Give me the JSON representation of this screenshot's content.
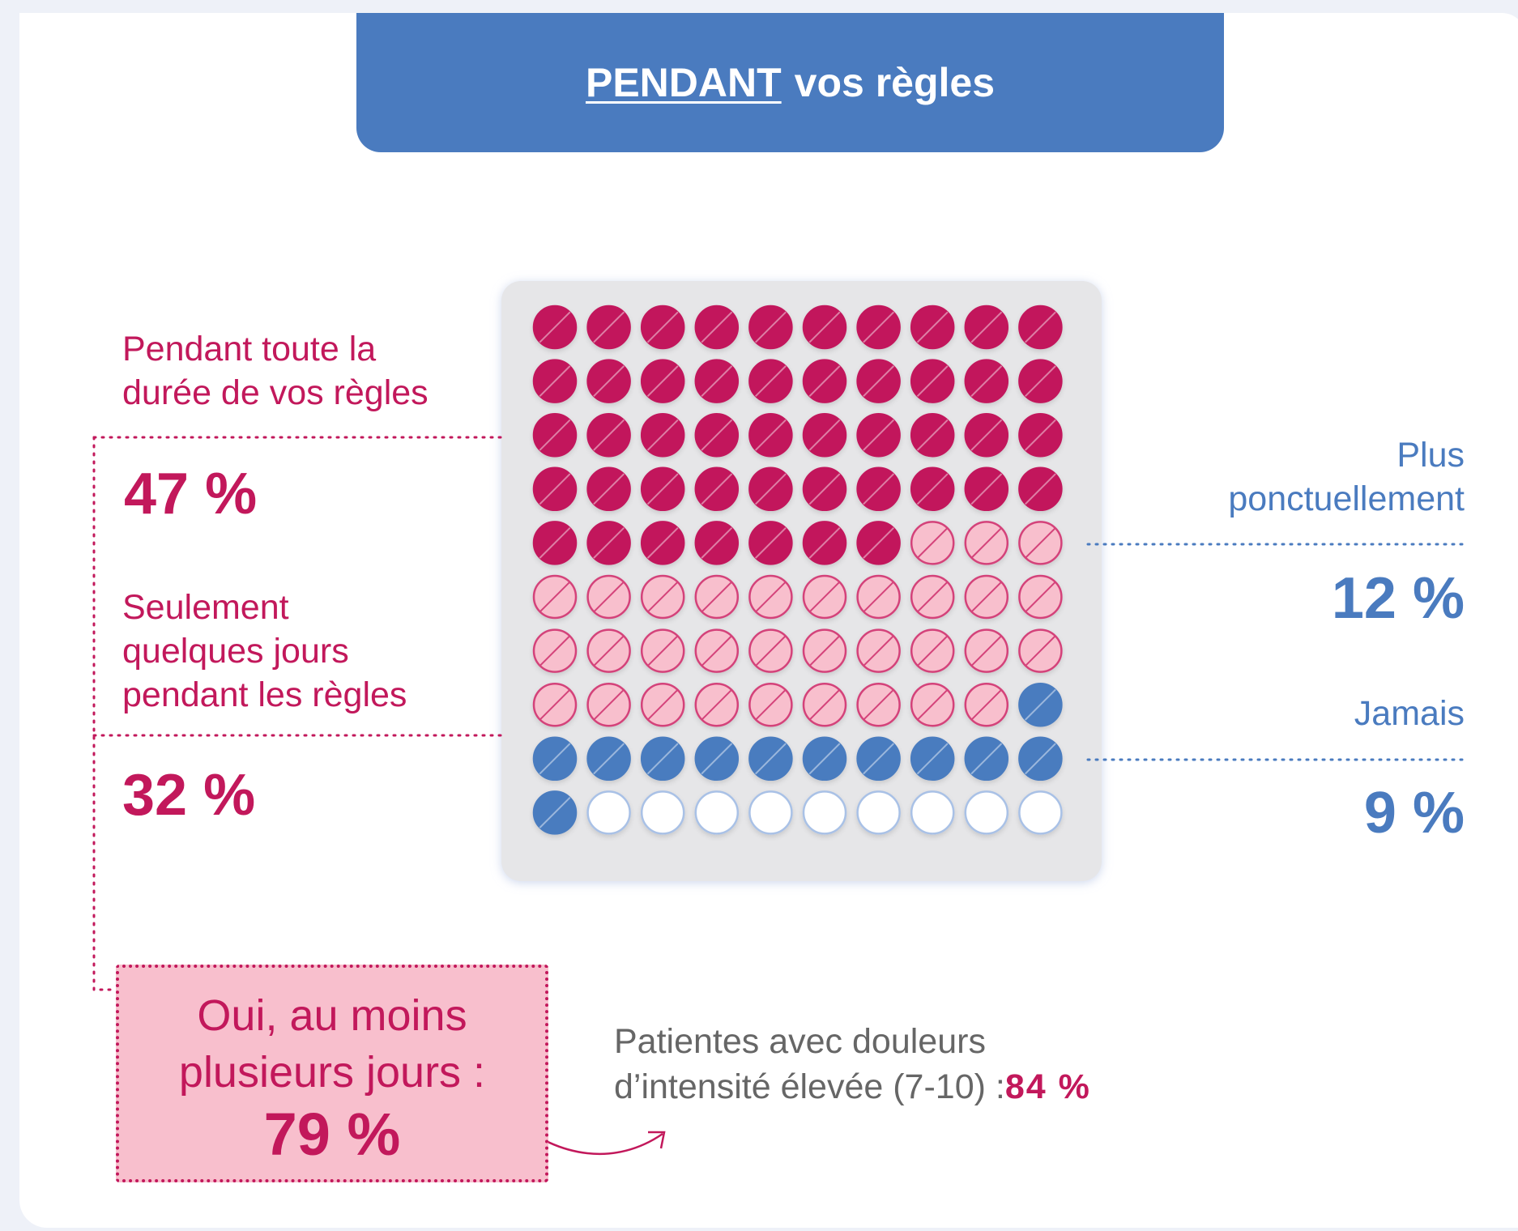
{
  "header": {
    "highlight": "PENDANT",
    "rest": "vos règles"
  },
  "chart_data": {
    "type": "waffle",
    "rows": 10,
    "cols": 10,
    "segments": [
      {
        "name": "Pendant toute la\ndurée de vos règles",
        "value": 47,
        "value_label": "47 %",
        "color": "#c2185b",
        "stroke": "#c2185b"
      },
      {
        "name": "Seulement\nquelques jours\npendant les règles",
        "value": 32,
        "value_label": "32 %",
        "color": "#f8bfcd",
        "stroke": "#d4437a"
      },
      {
        "name": "Plus\nponctuellement",
        "value": 12,
        "value_label": "12 %",
        "color": "#4a7bbf",
        "stroke": "#4a7bbf"
      },
      {
        "name": "Jamais",
        "value": 9,
        "value_label": "9 %",
        "color": "#ffffff",
        "stroke": "#a9c1e6"
      }
    ]
  },
  "summary": {
    "label": "Oui, au moins\nplusieurs jours :",
    "value": 79,
    "value_label": "79 %"
  },
  "note": {
    "label": "Patientes avec douleurs\nd’intensité élevée  (7-10) :",
    "value": 84,
    "value_label": "84 %"
  }
}
